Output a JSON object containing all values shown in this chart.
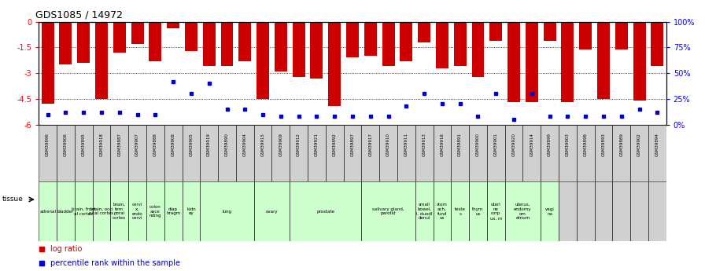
{
  "title": "GDS1085 / 14972",
  "gsm_ids": [
    "GSM39896",
    "GSM39906",
    "GSM39895",
    "GSM39918",
    "GSM39887",
    "GSM39907",
    "GSM39888",
    "GSM39908",
    "GSM39905",
    "GSM39919",
    "GSM39890",
    "GSM39904",
    "GSM39915",
    "GSM39909",
    "GSM39912",
    "GSM39921",
    "GSM39892",
    "GSM39897",
    "GSM39917",
    "GSM39910",
    "GSM39911",
    "GSM39913",
    "GSM39916",
    "GSM39891",
    "GSM39900",
    "GSM39901",
    "GSM39920",
    "GSM39914",
    "GSM39899",
    "GSM39903",
    "GSM39898",
    "GSM39893",
    "GSM39889",
    "GSM39902",
    "GSM39894"
  ],
  "log_ratios": [
    -4.8,
    -2.5,
    -2.4,
    -4.5,
    -1.8,
    -1.3,
    -2.3,
    -0.4,
    -1.7,
    -2.6,
    -2.6,
    -2.3,
    -4.5,
    -2.9,
    -3.2,
    -3.3,
    -4.9,
    -2.1,
    -2.0,
    -2.6,
    -2.3,
    -1.2,
    -2.7,
    -2.6,
    -3.2,
    -1.1,
    -4.7,
    -4.7,
    -1.1,
    -4.7,
    -1.6,
    -4.5,
    -1.6,
    -4.6,
    -2.6
  ],
  "pct_ranks": [
    10,
    12,
    12,
    12,
    12,
    10,
    10,
    42,
    30,
    40,
    15,
    15,
    10,
    8,
    8,
    8,
    8,
    8,
    8,
    8,
    18,
    30,
    20,
    20,
    8,
    30,
    5,
    30,
    8,
    8,
    8,
    8,
    8,
    15,
    12
  ],
  "tissue_groups": [
    {
      "label": "adrenal",
      "start": 0,
      "end": 0
    },
    {
      "label": "bladder",
      "start": 1,
      "end": 1
    },
    {
      "label": "brain, front\nal cortex",
      "start": 2,
      "end": 2
    },
    {
      "label": "brain, occi\npital cortex",
      "start": 3,
      "end": 3
    },
    {
      "label": "brain,\ntem\nporal\ncortex",
      "start": 4,
      "end": 4
    },
    {
      "label": "cervi\nx,\nendo\ncervi",
      "start": 5,
      "end": 5
    },
    {
      "label": "colon\nasce\nnding",
      "start": 6,
      "end": 6
    },
    {
      "label": "diap\nhragm",
      "start": 7,
      "end": 7
    },
    {
      "label": "kidn\ney",
      "start": 8,
      "end": 8
    },
    {
      "label": "lung",
      "start": 9,
      "end": 11
    },
    {
      "label": "ovary",
      "start": 12,
      "end": 13
    },
    {
      "label": "prostate",
      "start": 14,
      "end": 17
    },
    {
      "label": "salivary gland,\nparotid",
      "start": 18,
      "end": 20
    },
    {
      "label": "small\nbowel,\nl. duodl\ndenul",
      "start": 21,
      "end": 21
    },
    {
      "label": "stom\nach,\nfund\nus",
      "start": 22,
      "end": 22
    },
    {
      "label": "teste\ns",
      "start": 23,
      "end": 23
    },
    {
      "label": "thym\nus",
      "start": 24,
      "end": 24
    },
    {
      "label": "uteri\nne\ncorp\nus, m",
      "start": 25,
      "end": 25
    },
    {
      "label": "uterus,\nendomy\nom\netrium",
      "start": 26,
      "end": 27
    },
    {
      "label": "vagi\nna",
      "start": 28,
      "end": 28
    },
    {
      "label": "",
      "start": 29,
      "end": 29
    },
    {
      "label": "",
      "start": 30,
      "end": 30
    },
    {
      "label": "",
      "start": 31,
      "end": 31
    },
    {
      "label": "",
      "start": 32,
      "end": 32
    },
    {
      "label": "",
      "start": 33,
      "end": 33
    },
    {
      "label": "",
      "start": 34,
      "end": 34
    }
  ],
  "bar_color": "#cc0000",
  "dot_color": "#0000cc",
  "ylim_min": -6,
  "ylim_max": 0,
  "yticks": [
    0,
    -1.5,
    -3,
    -4.5,
    -6
  ],
  "ytick_labels": [
    "0",
    "-1.5",
    "-3",
    "-4.5",
    "-6"
  ],
  "right_ytick_pcts": [
    0,
    25,
    50,
    75,
    100
  ],
  "right_ytick_labels": [
    "0%",
    "25%",
    "50%",
    "75%",
    "100%"
  ],
  "tissue_color": "#ccffcc",
  "gsm_color": "#d0d0d0",
  "background_color": "#ffffff"
}
